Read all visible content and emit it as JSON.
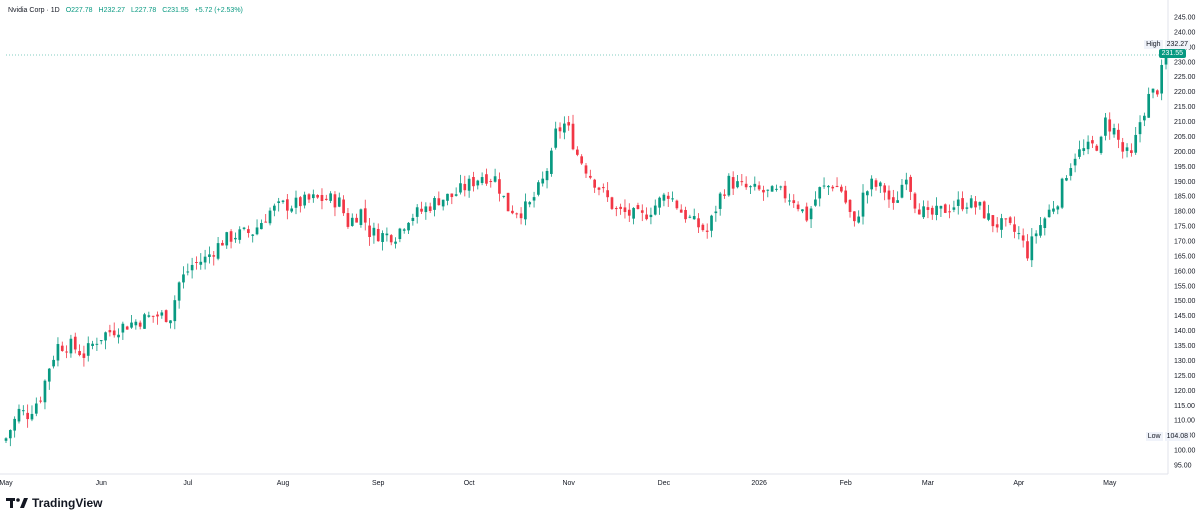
{
  "legend": {
    "symbol": "Nvidia Corp · 1D",
    "open": "O227.78",
    "high": "H232.27",
    "low": "L227.78",
    "close": "C231.55",
    "change": "+5.72 (+2.53%)"
  },
  "price_label": "231.55",
  "high_marker": {
    "label": "High",
    "value": "232.27"
  },
  "low_marker": {
    "label": "Low",
    "value": "104.08"
  },
  "brand": "TradingView",
  "colors": {
    "up": "#089981",
    "down": "#f23645",
    "grid": "#f0f3fa",
    "axis_text": "#131722"
  },
  "chart_data": {
    "type": "candlestick",
    "y_axis_ticks": [
      "245.00",
      "240.00",
      "235.00",
      "230.00",
      "225.00",
      "220.00",
      "215.00",
      "210.00",
      "205.00",
      "200.00",
      "195.00",
      "190.00",
      "185.00",
      "180.00",
      "175.00",
      "170.00",
      "165.00",
      "160.00",
      "155.00",
      "150.00",
      "145.00",
      "140.00",
      "135.00",
      "130.00",
      "125.00",
      "120.00",
      "115.00",
      "110.00",
      "105.00",
      "100.00",
      "95.00"
    ],
    "x_axis_ticks": [
      "May",
      "Jun",
      "Jul",
      "Aug",
      "Sep",
      "Oct",
      "Nov",
      "Dec",
      "2026",
      "Feb",
      "Mar",
      "Apr",
      "May"
    ],
    "ylim": [
      92,
      248
    ],
    "day_range": [
      0,
      262
    ],
    "x_tick_days": [
      0,
      22,
      42,
      64,
      86,
      107,
      130,
      152,
      174,
      194,
      213,
      234,
      255
    ],
    "high": 232.27,
    "low": 104.08,
    "last": 231.55,
    "anchors": [
      [
        0,
        104
      ],
      [
        3,
        113
      ],
      [
        5,
        112
      ],
      [
        8,
        118
      ],
      [
        10,
        128
      ],
      [
        12,
        135
      ],
      [
        15,
        135
      ],
      [
        18,
        132
      ],
      [
        21,
        137
      ],
      [
        23,
        139
      ],
      [
        26,
        141
      ],
      [
        30,
        143
      ],
      [
        34,
        145
      ],
      [
        38,
        145
      ],
      [
        40,
        156
      ],
      [
        43,
        162
      ],
      [
        46,
        164
      ],
      [
        50,
        170
      ],
      [
        53,
        172
      ],
      [
        57,
        173
      ],
      [
        61,
        180
      ],
      [
        64,
        182
      ],
      [
        66,
        182
      ],
      [
        71,
        184
      ],
      [
        75,
        184
      ],
      [
        77,
        183
      ],
      [
        79,
        176
      ],
      [
        82,
        180
      ],
      [
        84,
        173
      ],
      [
        87,
        172
      ],
      [
        90,
        172
      ],
      [
        93,
        178
      ],
      [
        96,
        180
      ],
      [
        100,
        184
      ],
      [
        103,
        185
      ],
      [
        106,
        188
      ],
      [
        110,
        192
      ],
      [
        113,
        191
      ],
      [
        116,
        181
      ],
      [
        119,
        180
      ],
      [
        121,
        182
      ],
      [
        124,
        190
      ],
      [
        126,
        198
      ],
      [
        127,
        206
      ],
      [
        129,
        209
      ],
      [
        130,
        207
      ],
      [
        132,
        199
      ],
      [
        135,
        192
      ],
      [
        138,
        186
      ],
      [
        141,
        180
      ],
      [
        144,
        179
      ],
      [
        147,
        178
      ],
      [
        150,
        182
      ],
      [
        153,
        186
      ],
      [
        156,
        180
      ],
      [
        159,
        176
      ],
      [
        162,
        173
      ],
      [
        165,
        185
      ],
      [
        167,
        190
      ],
      [
        170,
        188
      ],
      [
        173,
        187
      ],
      [
        176,
        186
      ],
      [
        179,
        186
      ],
      [
        182,
        184
      ],
      [
        185,
        178
      ],
      [
        188,
        187
      ],
      [
        191,
        189
      ],
      [
        193,
        187
      ],
      [
        196,
        175
      ],
      [
        198,
        185
      ],
      [
        200,
        189
      ],
      [
        203,
        187
      ],
      [
        205,
        181
      ],
      [
        208,
        193
      ],
      [
        210,
        183
      ],
      [
        213,
        178
      ],
      [
        216,
        180
      ],
      [
        219,
        182
      ],
      [
        222,
        183
      ],
      [
        225,
        181
      ],
      [
        228,
        176
      ],
      [
        231,
        175
      ],
      [
        234,
        172
      ],
      [
        236,
        166
      ],
      [
        238,
        173
      ],
      [
        241,
        180
      ],
      [
        243,
        184
      ],
      [
        245,
        193
      ],
      [
        247,
        199
      ],
      [
        250,
        201
      ],
      [
        253,
        203
      ],
      [
        254,
        210
      ],
      [
        256,
        207
      ],
      [
        258,
        200
      ],
      [
        260,
        198
      ],
      [
        262,
        210
      ],
      [
        264,
        218
      ],
      [
        266,
        221
      ],
      [
        268,
        232
      ]
    ]
  }
}
